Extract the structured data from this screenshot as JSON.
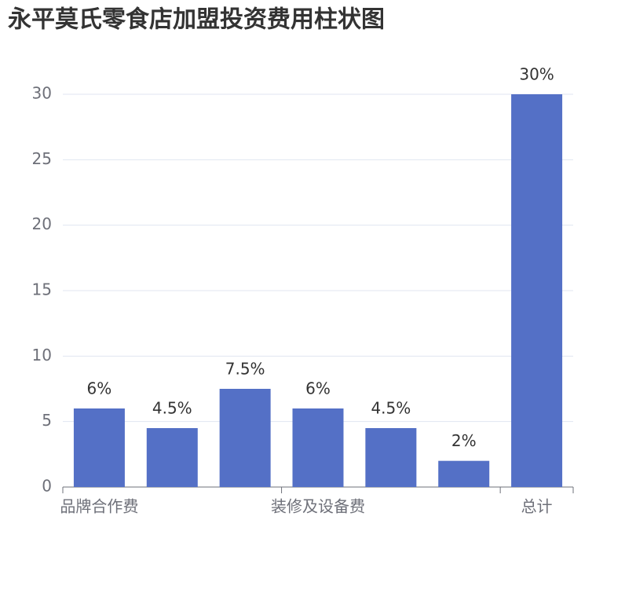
{
  "chart_data": {
    "type": "bar",
    "title": "永平莫氏零食店加盟投资费用柱状图",
    "categories": [
      "品牌合作费",
      null,
      null,
      "装修及设备费",
      null,
      null,
      "总计"
    ],
    "values": [
      6,
      4.5,
      7.5,
      6,
      4.5,
      2,
      30
    ],
    "value_labels": [
      "6%",
      "4.5%",
      "7.5%",
      "6%",
      "4.5%",
      "2%",
      "30%"
    ],
    "color": "#5470c6",
    "ylim": [
      0,
      30
    ],
    "yticks": [
      0,
      5,
      10,
      15,
      20,
      25,
      30
    ],
    "grid": true
  }
}
